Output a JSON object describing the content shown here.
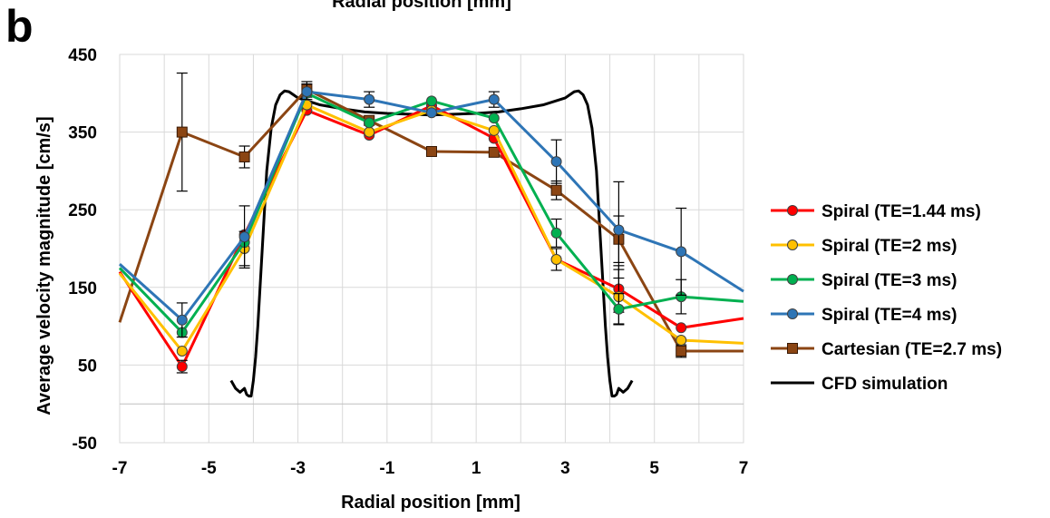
{
  "panel_label": "b",
  "top_caption_fragment": "Radial position [mm]",
  "chart_data": {
    "type": "line",
    "xlabel": "Radial position [mm]",
    "ylabel": "Average velocity magnitude [cm/s]",
    "xlim": [
      -7,
      7
    ],
    "ylim": [
      -50,
      450
    ],
    "xticks": [
      "-7",
      "-5",
      "-3",
      "-1",
      "1",
      "3",
      "5",
      "7"
    ],
    "yticks": [
      "-50",
      "50",
      "150",
      "250",
      "350",
      "450"
    ],
    "grid": true,
    "legend_position": "right",
    "series": [
      {
        "name": "Spiral (TE=1.44 ms)",
        "color": "#ff0000",
        "marker": "circle",
        "x": [
          -7,
          -5.6,
          -4.2,
          -2.8,
          -1.4,
          0,
          1.4,
          2.8,
          4.2,
          5.6,
          7
        ],
        "y": [
          170,
          48,
          218,
          378,
          346,
          384,
          342,
          186,
          148,
          98,
          110
        ],
        "err": [
          null,
          8,
          null,
          null,
          null,
          null,
          null,
          null,
          30,
          null,
          null
        ]
      },
      {
        "name": "Spiral (TE=2 ms)",
        "color": "#ffc000",
        "marker": "circle",
        "x": [
          -7,
          -5.6,
          -4.2,
          -2.8,
          -1.4,
          0,
          1.4,
          2.8,
          4.2,
          5.6,
          7
        ],
        "y": [
          168,
          68,
          200,
          385,
          350,
          378,
          352,
          186,
          138,
          82,
          78
        ],
        "err": [
          null,
          null,
          22,
          null,
          null,
          null,
          null,
          14,
          35,
          null,
          null
        ]
      },
      {
        "name": "Spiral (TE=3 ms)",
        "color": "#00b050",
        "marker": "circle",
        "x": [
          -7,
          -5.6,
          -4.2,
          -2.8,
          -1.4,
          0,
          1.4,
          2.8,
          4.2,
          5.6,
          7
        ],
        "y": [
          175,
          92,
          208,
          400,
          362,
          390,
          368,
          220,
          122,
          138,
          132
        ],
        "err": [
          null,
          null,
          null,
          null,
          null,
          null,
          null,
          18,
          20,
          22,
          null
        ]
      },
      {
        "name": "Spiral (TE=4 ms)",
        "color": "#2e75b6",
        "marker": "circle",
        "x": [
          -7,
          -5.6,
          -4.2,
          -2.8,
          -1.4,
          0,
          1.4,
          2.8,
          4.2,
          5.6,
          7
        ],
        "y": [
          180,
          108,
          215,
          402,
          392,
          375,
          392,
          312,
          224,
          196,
          145
        ],
        "err": [
          null,
          22,
          40,
          10,
          10,
          null,
          10,
          28,
          62,
          56,
          null
        ]
      },
      {
        "name": "Cartesian (TE=2.7 ms)",
        "color": "#8b4513",
        "marker": "square",
        "x": [
          -7,
          -5.6,
          -4.2,
          -2.8,
          -1.4,
          0,
          1.4,
          2.8,
          4.2,
          5.6,
          7
        ],
        "y": [
          105,
          350,
          318,
          405,
          365,
          325,
          324,
          275,
          212,
          68,
          68
        ],
        "err": [
          null,
          76,
          14,
          10,
          null,
          null,
          null,
          12,
          30,
          8,
          null
        ]
      },
      {
        "name": "CFD simulation",
        "color": "#000000",
        "marker": "none",
        "x": [
          -4.5,
          -4.4,
          -4.3,
          -4.2,
          -4.15,
          -4.1,
          -4.05,
          -4.0,
          -3.95,
          -3.9,
          -3.8,
          -3.7,
          -3.6,
          -3.5,
          -3.4,
          -3.3,
          -3.2,
          -3.1,
          -3.0,
          -2.5,
          -2.0,
          -1.5,
          -1.0,
          -0.5,
          0,
          0.5,
          1.0,
          1.5,
          2.0,
          2.5,
          3.0,
          3.1,
          3.2,
          3.3,
          3.4,
          3.5,
          3.6,
          3.7,
          3.8,
          3.9,
          3.95,
          4.0,
          4.05,
          4.1,
          4.15,
          4.2,
          4.3,
          4.4,
          4.5
        ],
        "y": [
          30,
          20,
          15,
          20,
          12,
          10,
          10,
          30,
          60,
          100,
          200,
          300,
          355,
          385,
          398,
          403,
          402,
          398,
          394,
          385,
          380,
          376,
          374,
          373,
          372,
          373,
          374,
          376,
          380,
          385,
          394,
          398,
          402,
          403,
          398,
          385,
          355,
          300,
          200,
          100,
          60,
          30,
          10,
          10,
          12,
          20,
          15,
          20,
          30
        ]
      }
    ]
  }
}
